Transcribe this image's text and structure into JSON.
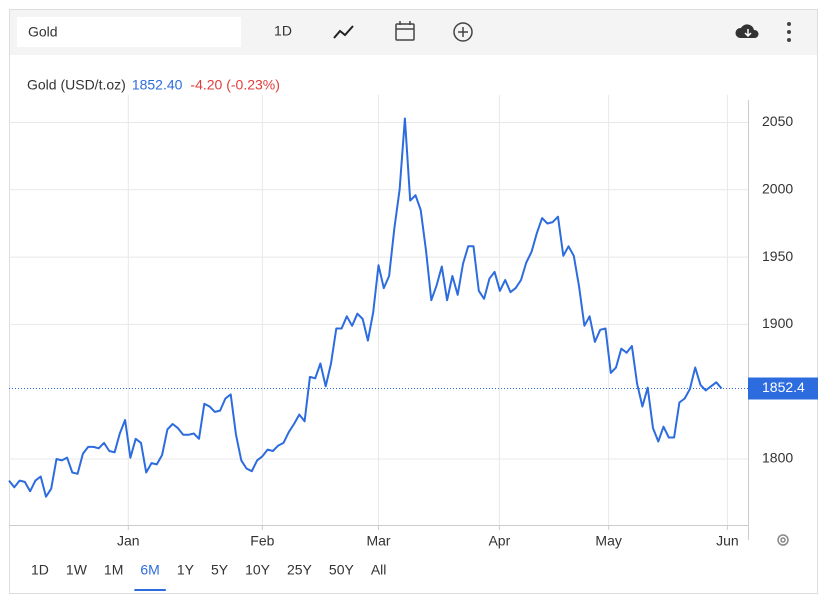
{
  "toolbar": {
    "search": "Gold",
    "interval": "1D"
  },
  "chart_data": {
    "type": "line",
    "title": "Gold (USD/t.oz)",
    "last_price": "1852.40",
    "change": "-4.20 (-0.23%)",
    "series": [
      {
        "name": "Gold",
        "color": "#2d6cdf",
        "values": [
          1784,
          1779,
          1784,
          1783,
          1776,
          1784,
          1787,
          1772,
          1778,
          1800,
          1799,
          1801,
          1790,
          1789,
          1804,
          1809,
          1809,
          1808,
          1812,
          1806,
          1805,
          1819,
          1829,
          1801,
          1815,
          1812,
          1790,
          1797,
          1796,
          1803,
          1822,
          1826,
          1823,
          1818,
          1818,
          1819,
          1815,
          1841,
          1839,
          1835,
          1836,
          1845,
          1848,
          1818,
          1799,
          1793,
          1791,
          1799,
          1802,
          1807,
          1806,
          1810,
          1812,
          1820,
          1826,
          1833,
          1828,
          1861,
          1860,
          1871,
          1854,
          1871,
          1897,
          1897,
          1906,
          1899,
          1908,
          1904,
          1888,
          1909,
          1944,
          1927,
          1936,
          1971,
          2000,
          2053,
          1992,
          1996,
          1985,
          1955,
          1918,
          1929,
          1943,
          1918,
          1936,
          1922,
          1945,
          1958,
          1958,
          1925,
          1919,
          1934,
          1939,
          1925,
          1933,
          1924,
          1927,
          1933,
          1946,
          1954,
          1968,
          1979,
          1975,
          1976,
          1980,
          1951,
          1958,
          1951,
          1928,
          1899,
          1906,
          1887,
          1896,
          1897,
          1864,
          1868,
          1882,
          1879,
          1884,
          1856,
          1839,
          1853,
          1823,
          1813,
          1824,
          1816,
          1816,
          1842,
          1845,
          1852,
          1868,
          1855,
          1851,
          1854,
          1857,
          1852.4
        ]
      }
    ],
    "current_price": 1852.4,
    "xlim": [
      0,
      140
    ],
    "xticks": [
      {
        "value": 22.6,
        "label": "Jan"
      },
      {
        "value": 48,
        "label": "Feb"
      },
      {
        "value": 70,
        "label": "Mar"
      },
      {
        "value": 92.9,
        "label": "Apr"
      },
      {
        "value": 113.6,
        "label": "May"
      },
      {
        "value": 136.1,
        "label": "Jun"
      }
    ],
    "ylim": [
      1751,
      2063
    ],
    "yticks": [
      1800,
      1900,
      1950,
      2000,
      2050
    ],
    "grid": true
  },
  "ranges": [
    "1D",
    "1W",
    "1M",
    "6M",
    "1Y",
    "5Y",
    "10Y",
    "25Y",
    "50Y",
    "All"
  ],
  "active_range": "6M"
}
